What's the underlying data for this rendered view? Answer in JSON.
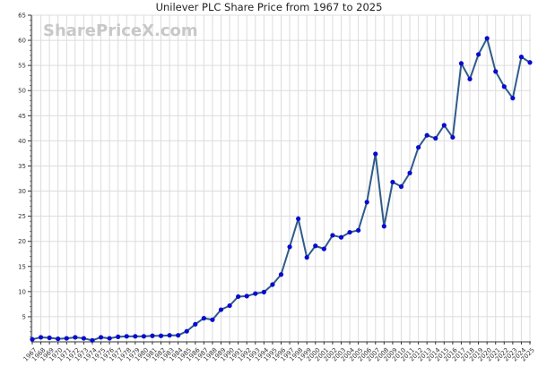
{
  "chart_data": {
    "type": "line",
    "title": "Unilever PLC Share Price from 1967 to 2025",
    "watermark": "SharePriceX.com",
    "xlabel": "",
    "ylabel": "",
    "ylim": [
      0,
      65
    ],
    "yticks": [
      5,
      10,
      15,
      20,
      25,
      30,
      35,
      40,
      45,
      50,
      55,
      60,
      65
    ],
    "grid": true,
    "x": [
      1967,
      1968,
      1969,
      1970,
      1971,
      1972,
      1973,
      1974,
      1975,
      1976,
      1977,
      1978,
      1979,
      1980,
      1981,
      1982,
      1983,
      1984,
      1985,
      1986,
      1987,
      1988,
      1989,
      1990,
      1991,
      1992,
      1993,
      1994,
      1995,
      1996,
      1997,
      1998,
      1999,
      2000,
      2001,
      2002,
      2003,
      2004,
      2005,
      2006,
      2007,
      2008,
      2009,
      2010,
      2011,
      2012,
      2013,
      2014,
      2015,
      2016,
      2017,
      2018,
      2019,
      2020,
      2021,
      2022,
      2023,
      2024,
      2025
    ],
    "series": [
      {
        "name": "Unilever PLC",
        "values": [
          0.5,
          0.9,
          0.8,
          0.6,
          0.7,
          0.9,
          0.7,
          0.3,
          0.9,
          0.7,
          1.0,
          1.1,
          1.1,
          1.1,
          1.2,
          1.2,
          1.3,
          1.3,
          2.1,
          3.5,
          4.7,
          4.4,
          6.4,
          7.2,
          9.0,
          9.1,
          9.6,
          9.9,
          11.4,
          13.4,
          18.9,
          24.5,
          16.8,
          19.1,
          18.5,
          21.2,
          20.8,
          21.8,
          22.2,
          27.8,
          37.4,
          23.0,
          31.8,
          30.9,
          33.6,
          38.7,
          41.1,
          40.5,
          43.1,
          40.7,
          55.4,
          52.3,
          57.2,
          60.4,
          53.8,
          50.8,
          48.5,
          56.7,
          55.6
        ],
        "line_color": "#2f5b8a",
        "marker_color": "#0a0ad0"
      }
    ]
  }
}
